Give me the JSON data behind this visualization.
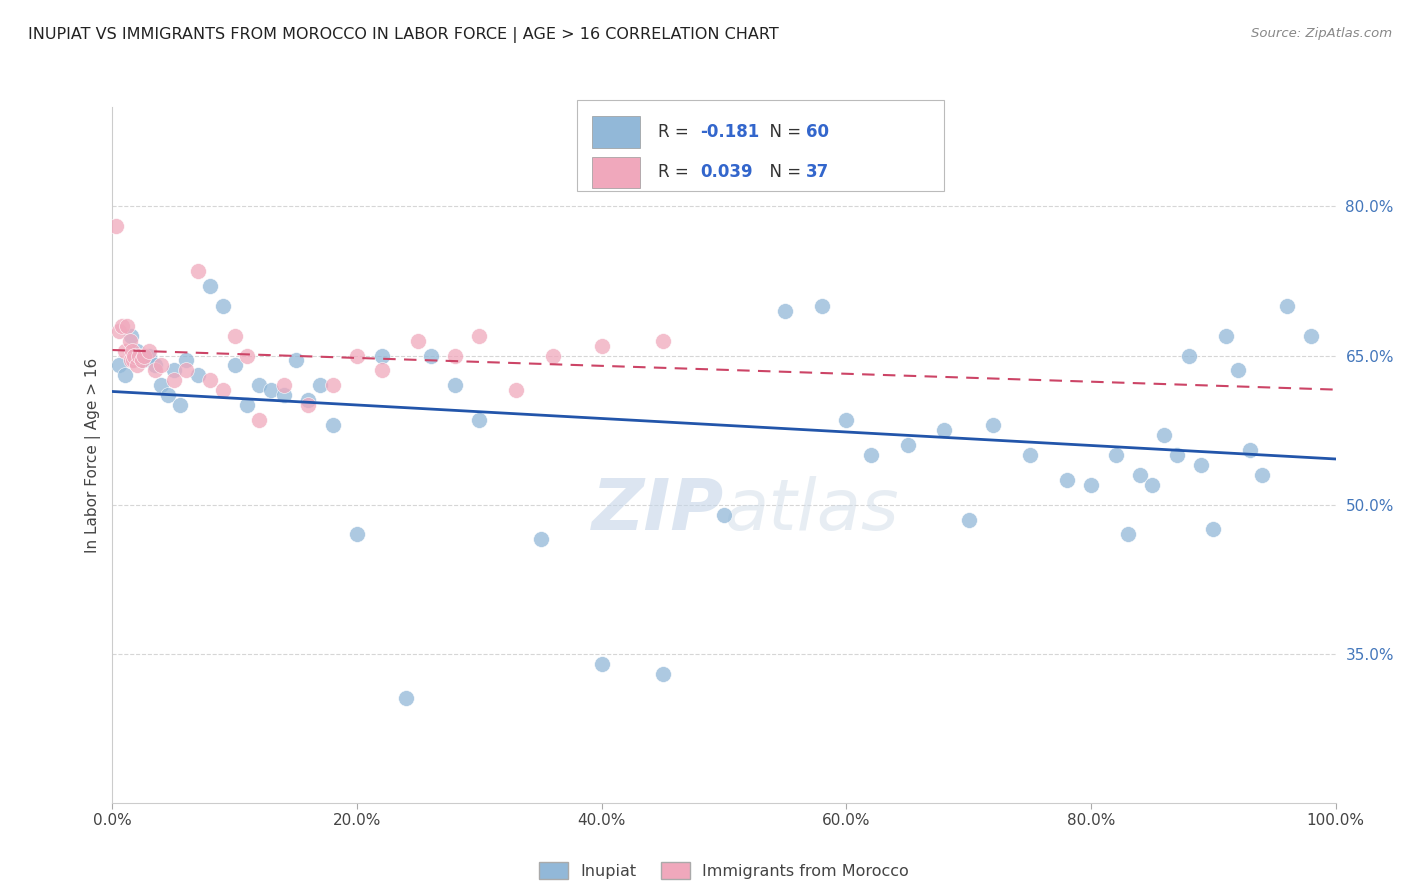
{
  "title": "INUPIAT VS IMMIGRANTS FROM MOROCCO IN LABOR FORCE | AGE > 16 CORRELATION CHART",
  "source": "Source: ZipAtlas.com",
  "ylabel": "In Labor Force | Age > 16",
  "r_inupiat": -0.181,
  "n_inupiat": 60,
  "r_morocco": 0.039,
  "n_morocco": 37,
  "legend_labels": [
    "Inupiat",
    "Immigrants from Morocco"
  ],
  "color_inupiat": "#92b8d8",
  "color_morocco": "#f0a8bc",
  "trendline_color_inupiat": "#2255aa",
  "trendline_color_morocco": "#cc4466",
  "background_color": "#ffffff",
  "grid_color": "#cccccc",
  "right_tick_color": "#4477bb",
  "title_color": "#222222",
  "inupiat_x": [
    0.5,
    1.0,
    1.5,
    2.0,
    2.5,
    3.0,
    3.5,
    4.0,
    4.5,
    5.0,
    5.5,
    6.0,
    7.0,
    8.0,
    9.0,
    10.0,
    11.0,
    12.0,
    13.0,
    14.0,
    15.0,
    16.0,
    17.0,
    18.0,
    20.0,
    22.0,
    24.0,
    26.0,
    28.0,
    30.0,
    35.0,
    40.0,
    45.0,
    50.0,
    55.0,
    58.0,
    60.0,
    62.0,
    65.0,
    68.0,
    70.0,
    72.0,
    75.0,
    78.0,
    80.0,
    82.0,
    83.0,
    84.0,
    85.0,
    86.0,
    87.0,
    88.0,
    89.0,
    90.0,
    91.0,
    92.0,
    93.0,
    94.0,
    96.0,
    98.0
  ],
  "inupiat_y": [
    64.0,
    63.0,
    67.0,
    65.5,
    64.5,
    65.0,
    64.0,
    62.0,
    61.0,
    63.5,
    60.0,
    64.5,
    63.0,
    72.0,
    70.0,
    64.0,
    60.0,
    62.0,
    61.5,
    61.0,
    64.5,
    60.5,
    62.0,
    58.0,
    47.0,
    65.0,
    30.5,
    65.0,
    62.0,
    58.5,
    46.5,
    34.0,
    33.0,
    49.0,
    69.5,
    70.0,
    58.5,
    55.0,
    56.0,
    57.5,
    48.5,
    58.0,
    55.0,
    52.5,
    52.0,
    55.0,
    47.0,
    53.0,
    52.0,
    57.0,
    55.0,
    65.0,
    54.0,
    47.5,
    67.0,
    63.5,
    55.5,
    53.0,
    70.0,
    67.0
  ],
  "morocco_x": [
    0.3,
    0.5,
    0.8,
    1.0,
    1.2,
    1.4,
    1.5,
    1.6,
    1.7,
    1.8,
    2.0,
    2.2,
    2.4,
    2.6,
    3.0,
    3.5,
    4.0,
    5.0,
    6.0,
    7.0,
    8.0,
    9.0,
    10.0,
    11.0,
    12.0,
    14.0,
    16.0,
    18.0,
    20.0,
    22.0,
    25.0,
    28.0,
    30.0,
    33.0,
    36.0,
    40.0,
    45.0
  ],
  "morocco_y": [
    78.0,
    67.5,
    68.0,
    65.5,
    68.0,
    66.5,
    64.5,
    65.5,
    64.5,
    65.0,
    64.0,
    65.0,
    64.5,
    65.0,
    65.5,
    63.5,
    64.0,
    62.5,
    63.5,
    73.5,
    62.5,
    61.5,
    67.0,
    65.0,
    58.5,
    62.0,
    60.0,
    62.0,
    65.0,
    63.5,
    66.5,
    65.0,
    67.0,
    61.5,
    65.0,
    66.0,
    66.5
  ],
  "xlim": [
    0,
    100
  ],
  "ylim": [
    20,
    90
  ],
  "yticks": [
    35.0,
    50.0,
    65.0,
    80.0
  ],
  "xticks": [
    0.0,
    20.0,
    40.0,
    60.0,
    80.0,
    100.0
  ],
  "xtick_labels": [
    "0.0%",
    "20.0%",
    "40.0%",
    "60.0%",
    "80.0%",
    "100.0%"
  ],
  "ytick_labels": [
    "35.0%",
    "50.0%",
    "65.0%",
    "80.0%"
  ]
}
